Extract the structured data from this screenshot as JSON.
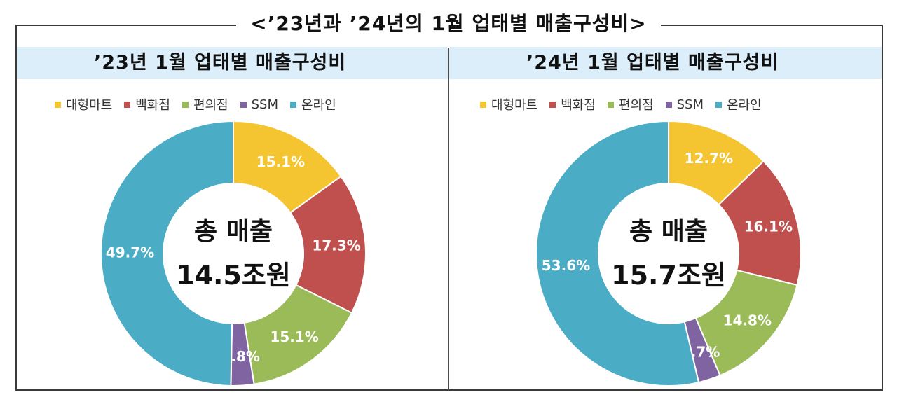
{
  "title": "<’23년과 ’24년의 1월 업태별 매출구성비>",
  "colors": {
    "대형마트": "#f5c431",
    "백화점": "#c0504d",
    "편의점": "#9bbb59",
    "SSM": "#8064a2",
    "온라인": "#4bacc6"
  },
  "chart_data": [
    {
      "type": "pie",
      "title": "’23년 1월 업태별 매출구성비",
      "legend": [
        "대형마트",
        "백화점",
        "편의점",
        "SSM",
        "온라인"
      ],
      "legend_position": "top",
      "slices": [
        {
          "name": "대형마트",
          "value": 15.1,
          "label": "15.1%"
        },
        {
          "name": "백화점",
          "value": 17.3,
          "label": "17.3%"
        },
        {
          "name": "편의점",
          "value": 15.1,
          "label": "15.1%"
        },
        {
          "name": "SSM",
          "value": 2.8,
          "label": "2.8%"
        },
        {
          "name": "온라인",
          "value": 49.7,
          "label": "49.7%"
        }
      ],
      "center_label": "총 매출",
      "center_value": "14.5조원"
    },
    {
      "type": "pie",
      "title": "’24년 1월 업태별 매출구성비",
      "legend": [
        "대형마트",
        "백화점",
        "편의점",
        "SSM",
        "온라인"
      ],
      "legend_position": "top",
      "slices": [
        {
          "name": "대형마트",
          "value": 12.7,
          "label": "12.7%"
        },
        {
          "name": "백화점",
          "value": 16.1,
          "label": "16.1%"
        },
        {
          "name": "편의점",
          "value": 14.8,
          "label": "14.8%"
        },
        {
          "name": "SSM",
          "value": 2.7,
          "label": "2.7%"
        },
        {
          "name": "온라인",
          "value": 53.6,
          "label": "53.6%"
        }
      ],
      "center_label": "총 매출",
      "center_value": "15.7조원"
    }
  ]
}
